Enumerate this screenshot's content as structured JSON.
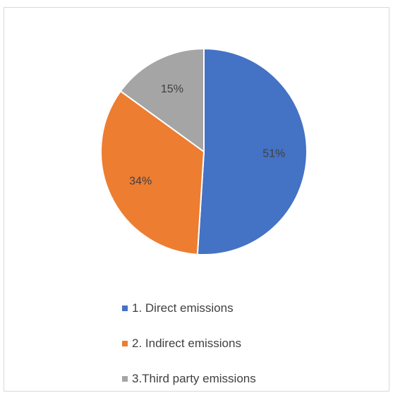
{
  "chart_data": {
    "type": "pie",
    "categories": [
      "1. Direct emissions",
      "2. Indirect emissions",
      "3.Third party emissions"
    ],
    "values": [
      51,
      34,
      15
    ],
    "data_labels": [
      "51%",
      "34%",
      "15%"
    ],
    "colors": [
      "#4472c4",
      "#ed7d31",
      "#a5a5a5"
    ],
    "legend_position": "bottom",
    "start_angle_deg": 0,
    "direction": "clockwise"
  }
}
